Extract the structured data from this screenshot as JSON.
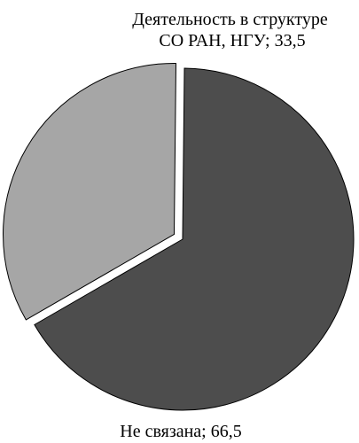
{
  "chart_data": {
    "type": "pie",
    "slices": [
      {
        "label_lines": [
          "Деятельность в структуре",
          "СО РАН, НГУ; 33,5"
        ],
        "value": 33.5,
        "color": "#a6a6a6",
        "exploded": true
      },
      {
        "label_lines": [
          "Не связана; 66,5"
        ],
        "value": 66.5,
        "color": "#4d4d4d",
        "exploded": false
      }
    ]
  },
  "colors": {
    "outline": "#000000",
    "background": "#ffffff"
  }
}
